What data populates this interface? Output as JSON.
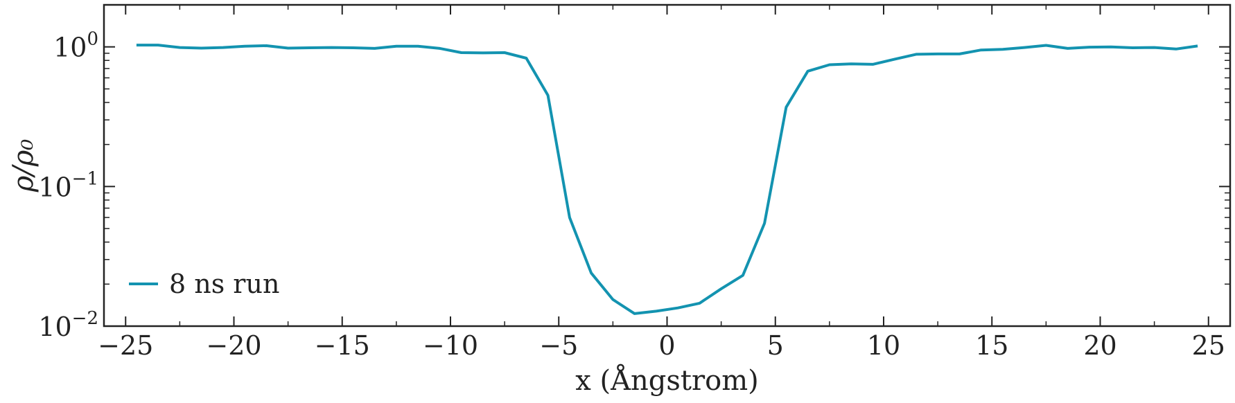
{
  "chart_data": {
    "type": "line",
    "title": "",
    "xlabel": "x (Ångstrom)",
    "ylabel": "ρ/ρ₀",
    "xlim": [
      -26,
      26
    ],
    "ylim": [
      0.01,
      2.0
    ],
    "yscale": "log",
    "grid": false,
    "legend": {
      "placement": "bottom-left"
    },
    "x_ticks": [
      -25,
      -20,
      -15,
      -10,
      -5,
      0,
      5,
      10,
      15,
      20,
      25
    ],
    "x_tick_labels": [
      "−25",
      "−20",
      "−15",
      "−10",
      "−5",
      "0",
      "5",
      "10",
      "15",
      "20",
      "25"
    ],
    "y_ticks": [
      {
        "value": 1.0,
        "base": "10",
        "exp": "0"
      },
      {
        "value": 0.1,
        "base": "10",
        "exp": "−1"
      },
      {
        "value": 0.01,
        "base": "10",
        "exp": "−2"
      }
    ],
    "series": [
      {
        "name": "8 ns run",
        "color": "#1393b0",
        "x": [
          -24.5,
          -23.5,
          -22.5,
          -21.5,
          -20.5,
          -19.5,
          -18.5,
          -17.5,
          -16.5,
          -15.5,
          -14.5,
          -13.5,
          -12.5,
          -11.5,
          -10.5,
          -9.5,
          -8.5,
          -7.5,
          -6.5,
          -5.5,
          -4.5,
          -3.5,
          -2.5,
          -1.5,
          -0.5,
          0.5,
          1.5,
          2.5,
          3.5,
          4.5,
          5.5,
          6.5,
          7.5,
          8.5,
          9.5,
          10.5,
          11.5,
          12.5,
          13.5,
          14.5,
          15.5,
          16.5,
          17.5,
          18.5,
          19.5,
          20.5,
          21.5,
          22.5,
          23.5,
          24.5
        ],
        "y": [
          1.03,
          1.03,
          0.99,
          0.98,
          0.99,
          1.01,
          1.02,
          0.98,
          0.985,
          0.99,
          0.985,
          0.975,
          1.01,
          1.01,
          0.975,
          0.91,
          0.905,
          0.91,
          0.83,
          0.45,
          0.06,
          0.024,
          0.0155,
          0.0123,
          0.0128,
          0.0135,
          0.0146,
          0.0185,
          0.0231,
          0.0545,
          0.37,
          0.67,
          0.745,
          0.755,
          0.75,
          0.815,
          0.885,
          0.89,
          0.89,
          0.95,
          0.96,
          0.99,
          1.025,
          0.975,
          0.995,
          1.0,
          0.985,
          0.99,
          0.965,
          1.015
        ]
      }
    ]
  }
}
